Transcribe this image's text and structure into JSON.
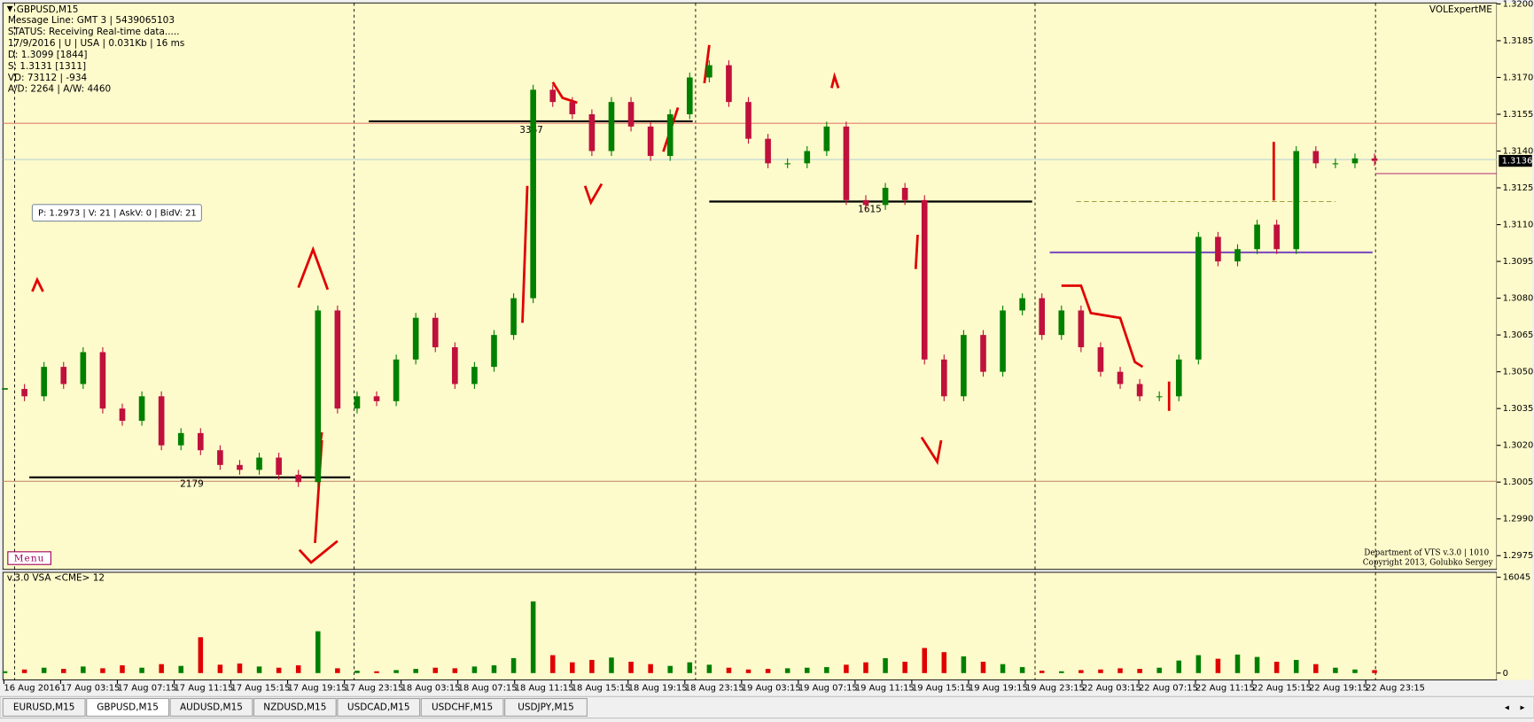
{
  "window": {
    "symbol_title": "GBPUSD,M15",
    "info_lines": [
      "Message Line: GMT 3 | 5439065103",
      "STATUS:  Receiving Real-time data.....",
      "17/9/2016 | U | USA | 0.031Kb | 16 ms",
      "D: 1.3099  [1844]",
      "S: 1.3131  [1311]",
      "VD: 73112 | -934",
      "A/D: 2264 | A/W: 4460"
    ],
    "tooltip": "P: 1.2973 | V: 21 | AskV: 0 | BidV: 21",
    "indicator": "VOLExpertME",
    "menu": "Menu",
    "credits": [
      "Department of VTS  v.3.0 | 1010",
      "Copyright 2013, Golubko Sergey"
    ],
    "poc_labels": [
      "3367",
      "2179",
      "1615"
    ]
  },
  "price_axis": {
    "ylim": [
      1.2975,
      1.32
    ],
    "yticks": [
      {
        "value": 1.32,
        "label": "1.3200"
      },
      1.3185,
      {
        "value": 1.317,
        "label": "1.3170"
      },
      1.3155,
      {
        "value": 1.314,
        "label": "1.3140"
      },
      1.3125,
      {
        "value": 1.311,
        "label": "1.3110"
      },
      1.3095,
      {
        "value": 1.308,
        "label": "1.3080"
      },
      1.3065,
      {
        "value": 1.305,
        "label": "1.3050"
      },
      1.3035,
      {
        "value": 1.302,
        "label": "1.3020"
      },
      1.3005,
      {
        "value": 1.299,
        "label": "1.2990"
      },
      1.2975
    ],
    "current": 1.3136
  },
  "prices": [
    1.3043,
    1.304,
    1.3052,
    1.3045,
    1.3058,
    1.3035,
    1.303,
    1.304,
    1.302,
    1.3025,
    1.3018,
    1.3012,
    1.301,
    1.3015,
    1.3008,
    1.3005,
    1.3075,
    1.3035,
    1.304,
    1.3038,
    1.3055,
    1.3072,
    1.306,
    1.3045,
    1.3052,
    1.3065,
    1.308,
    1.3165,
    1.316,
    1.3155,
    1.314,
    1.316,
    1.315,
    1.3138,
    1.3155,
    1.317,
    1.3175,
    1.316,
    1.3145,
    1.3135,
    1.3135,
    1.314,
    1.315,
    1.312,
    1.3118,
    1.3125,
    1.312,
    1.3055,
    1.304,
    1.3065,
    1.305,
    1.3075,
    1.308,
    1.3065,
    1.3075,
    1.306,
    1.305,
    1.3045,
    1.304,
    1.304,
    1.3055,
    1.3105,
    1.3095,
    1.31,
    1.311,
    1.31,
    1.314,
    1.3135,
    1.3135,
    1.3137,
    1.3136
  ],
  "volume_panel": {
    "label": "v.3.0 VSA <CME> 12",
    "ylim": [
      0,
      16045
    ],
    "yticks": [
      0,
      16045
    ],
    "values": [
      300,
      600,
      900,
      700,
      1100,
      800,
      1300,
      900,
      1500,
      1200,
      6000,
      1400,
      1600,
      1100,
      900,
      1300,
      7000,
      800,
      400,
      300,
      500,
      700,
      900,
      800,
      1100,
      1300,
      2500,
      12000,
      3000,
      1800,
      2200,
      2600,
      1900,
      1500,
      1200,
      1800,
      1400,
      900,
      600,
      700,
      800,
      900,
      1000,
      1400,
      1800,
      2500,
      1900,
      4200,
      3500,
      2800,
      1900,
      1500,
      1000,
      400,
      300,
      500,
      600,
      800,
      700,
      900,
      2100,
      3000,
      2400,
      3100,
      2700,
      1900,
      2200,
      1500,
      900,
      600,
      500
    ]
  },
  "time_axis": [
    "16 Aug 2016",
    "17 Aug 03:15",
    "17 Aug 07:15",
    "17 Aug 11:15",
    "17 Aug 15:15",
    "17 Aug 19:15",
    "17 Aug 23:15",
    "18 Aug 03:15",
    "18 Aug 07:15",
    "18 Aug 11:15",
    "18 Aug 15:15",
    "18 Aug 19:15",
    "18 Aug 23:15",
    "19 Aug 03:15",
    "19 Aug 07:15",
    "19 Aug 11:15",
    "19 Aug 15:15",
    "19 Aug 19:15",
    "19 Aug 23:15",
    "22 Aug 03:15",
    "22 Aug 07:15",
    "22 Aug 11:15",
    "22 Aug 15:15",
    "22 Aug 19:15",
    "22 Aug 23:15"
  ],
  "tabs": [
    "EURUSD,M15",
    "GBPUSD,M15",
    "AUDUSD,M15",
    "NZDUSD,M15",
    "USDCAD,M15",
    "USDCHF,M15",
    "USDJPY,M15"
  ],
  "active_tab": 1
}
